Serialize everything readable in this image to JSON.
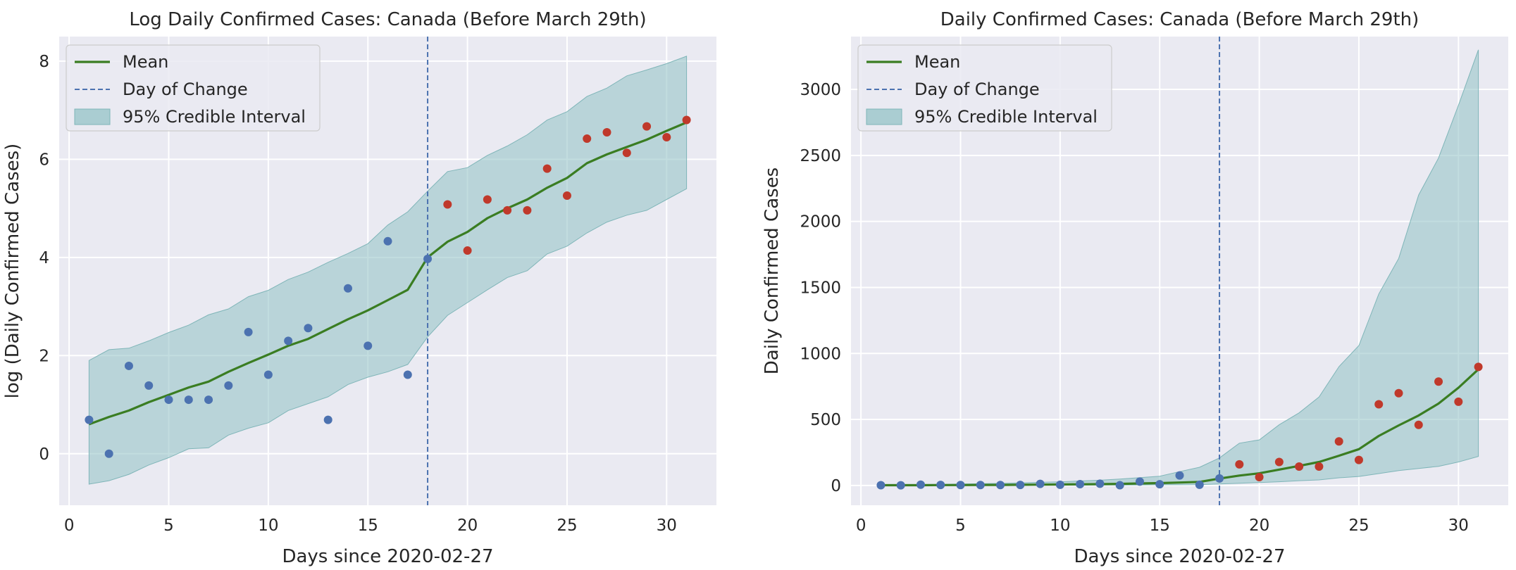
{
  "chart_data": [
    {
      "type": "scatter",
      "title": "Log Daily Confirmed Cases: Canada (Before March 29th)",
      "xlabel": "Days since 2020-02-27",
      "ylabel": "log (Daily Confirmed Cases)",
      "xlim": [
        -0.5,
        32.5
      ],
      "ylim": [
        -1.05,
        8.5
      ],
      "xticks": [
        0,
        5,
        10,
        15,
        20,
        25,
        30
      ],
      "yticks": [
        0,
        2,
        4,
        6,
        8
      ],
      "grid": true,
      "legend_position": "upper-left",
      "legend": [
        "Mean",
        "Day of Change",
        "95% Credible Interval"
      ],
      "day_of_change": 18,
      "colors": {
        "before": "#4c72b0",
        "after": "#c0392b",
        "mean": "#3a7d22",
        "band": "#8fc1c4",
        "change": "#4c72b0",
        "panel": "#eaeaf2"
      },
      "mean": {
        "x": [
          1,
          2,
          3,
          4,
          5,
          6,
          7,
          8,
          9,
          10,
          11,
          12,
          13,
          14,
          15,
          16,
          17,
          18,
          19,
          20,
          21,
          22,
          23,
          24,
          25,
          26,
          27,
          28,
          29,
          30,
          31
        ],
        "y": [
          0.6,
          0.75,
          0.88,
          1.05,
          1.2,
          1.35,
          1.47,
          1.67,
          1.85,
          2.02,
          2.2,
          2.34,
          2.54,
          2.74,
          2.92,
          3.13,
          3.34,
          4.0,
          4.32,
          4.52,
          4.8,
          5.0,
          5.18,
          5.42,
          5.62,
          5.92,
          6.1,
          6.25,
          6.4,
          6.58,
          6.75
        ]
      },
      "ci_lower": [
        -0.62,
        -0.55,
        -0.42,
        -0.23,
        -0.08,
        0.1,
        0.12,
        0.38,
        0.52,
        0.63,
        0.88,
        1.02,
        1.16,
        1.41,
        1.56,
        1.67,
        1.82,
        2.38,
        2.82,
        3.08,
        3.34,
        3.59,
        3.73,
        4.07,
        4.23,
        4.5,
        4.72,
        4.86,
        4.96,
        5.18,
        5.4
      ],
      "ci_upper": [
        1.9,
        2.12,
        2.15,
        2.3,
        2.47,
        2.62,
        2.83,
        2.95,
        3.2,
        3.33,
        3.55,
        3.7,
        3.9,
        4.08,
        4.28,
        4.66,
        4.93,
        5.35,
        5.75,
        5.83,
        6.08,
        6.27,
        6.5,
        6.8,
        6.97,
        7.28,
        7.45,
        7.7,
        7.82,
        7.95,
        8.1
      ],
      "observed_before": {
        "x": [
          1,
          2,
          3,
          4,
          5,
          6,
          7,
          8,
          9,
          10,
          11,
          12,
          13,
          14,
          15,
          16,
          17,
          18
        ],
        "y": [
          0.69,
          0.0,
          1.79,
          1.39,
          1.1,
          1.1,
          1.1,
          1.39,
          2.48,
          1.61,
          2.3,
          2.56,
          0.69,
          3.37,
          2.2,
          4.33,
          1.61,
          3.97
        ]
      },
      "observed_after": {
        "x": [
          19,
          20,
          21,
          22,
          23,
          24,
          25,
          26,
          27,
          28,
          29,
          30,
          31
        ],
        "y": [
          5.08,
          4.14,
          5.18,
          4.96,
          4.96,
          5.81,
          5.26,
          6.42,
          6.55,
          6.13,
          6.67,
          6.45,
          6.8
        ]
      }
    },
    {
      "type": "scatter",
      "title": "Daily Confirmed Cases: Canada (Before March 29th)",
      "xlabel": "Days since 2020-02-27",
      "ylabel": "Daily Confirmed Cases",
      "xlim": [
        -0.5,
        32.5
      ],
      "ylim": [
        -150,
        3400
      ],
      "xticks": [
        0,
        5,
        10,
        15,
        20,
        25,
        30
      ],
      "yticks": [
        0,
        500,
        1000,
        1500,
        2000,
        2500,
        3000
      ],
      "grid": true,
      "legend_position": "upper-left",
      "legend": [
        "Mean",
        "Day of Change",
        "95% Credible Interval"
      ],
      "day_of_change": 18,
      "colors": {
        "before": "#4c72b0",
        "after": "#c0392b",
        "mean": "#3a7d22",
        "band": "#8fc1c4",
        "change": "#4c72b0",
        "panel": "#eaeaf2"
      },
      "mean": {
        "x": [
          1,
          2,
          3,
          4,
          5,
          6,
          7,
          8,
          9,
          10,
          11,
          12,
          13,
          14,
          15,
          16,
          17,
          18,
          19,
          20,
          21,
          22,
          23,
          24,
          25,
          26,
          27,
          28,
          29,
          30,
          31
        ],
        "y": [
          2,
          2,
          2,
          3,
          3,
          4,
          4,
          5,
          6,
          7,
          9,
          10,
          12,
          15,
          18,
          22,
          27,
          52,
          75,
          92,
          120,
          148,
          178,
          225,
          275,
          375,
          455,
          530,
          620,
          740,
          880
        ]
      },
      "ci_lower": [
        0,
        0,
        0,
        0,
        0,
        0,
        0,
        1,
        2,
        2,
        2,
        3,
        3,
        4,
        5,
        5,
        6,
        11,
        17,
        22,
        28,
        36,
        42,
        58,
        68,
        90,
        112,
        128,
        145,
        178,
        220
      ],
      "ci_upper": [
        7,
        8,
        8,
        9,
        11,
        13,
        16,
        19,
        24,
        27,
        34,
        40,
        49,
        59,
        70,
        105,
        138,
        208,
        320,
        345,
        460,
        550,
        670,
        900,
        1060,
        1450,
        1720,
        2200,
        2480,
        2880,
        3300
      ],
      "observed_before": {
        "x": [
          1,
          2,
          3,
          4,
          5,
          6,
          7,
          8,
          9,
          10,
          11,
          12,
          13,
          14,
          15,
          16,
          17,
          18
        ],
        "y": [
          2,
          1,
          6,
          4,
          3,
          3,
          3,
          4,
          12,
          5,
          10,
          13,
          2,
          29,
          9,
          76,
          5,
          53
        ]
      },
      "observed_after": {
        "x": [
          19,
          20,
          21,
          22,
          23,
          24,
          25,
          26,
          27,
          28,
          29,
          30,
          31
        ],
        "y": [
          160,
          63,
          178,
          143,
          143,
          334,
          193,
          615,
          699,
          459,
          787,
          634,
          898
        ]
      }
    }
  ]
}
